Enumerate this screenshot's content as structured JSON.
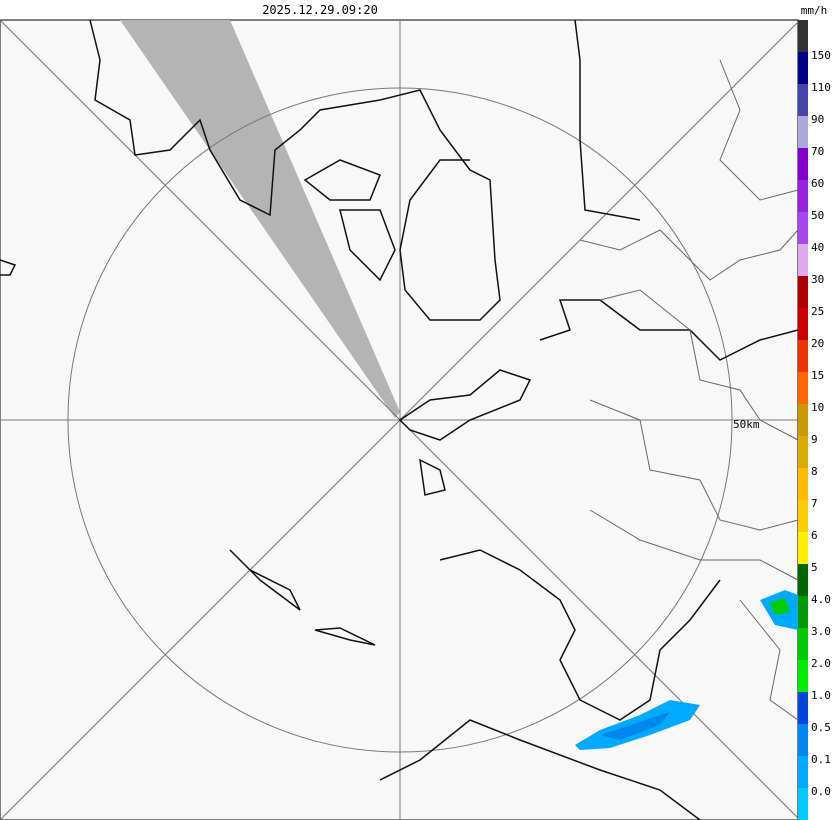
{
  "header": {
    "timestamp": "2025.12.29.09:20",
    "unit": "mm/h"
  },
  "map": {
    "range_label": "50km"
  },
  "legend": {
    "colors": [
      "#333333",
      "#000088",
      "#4444aa",
      "#aaaadd",
      "#8800cc",
      "#9922dd",
      "#aa44ee",
      "#ddaaee",
      "#aa0000",
      "#cc0000",
      "#ee3300",
      "#ff6600",
      "#cc9900",
      "#ddaa00",
      "#ffbb00",
      "#ffcc00",
      "#ffee00",
      "#006600",
      "#009900",
      "#00cc00",
      "#00ee00",
      "#0044dd",
      "#0088ee",
      "#00aaff",
      "#00ccff"
    ],
    "labels": [
      "150",
      "110",
      "90",
      "70",
      "60",
      "50",
      "40",
      "30",
      "25",
      "20",
      "15",
      "10",
      "9",
      "8",
      "7",
      "6",
      "5",
      "4.0",
      "3.0",
      "2.0",
      "1.0",
      "0.5",
      "0.1",
      "0.0"
    ]
  }
}
